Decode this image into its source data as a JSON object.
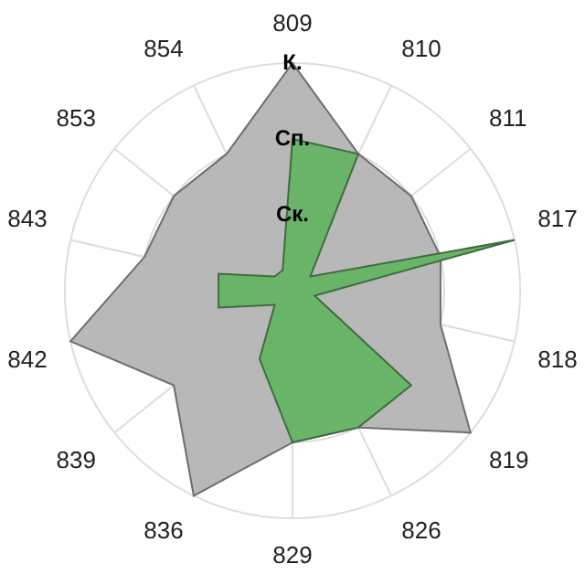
{
  "chart_data": {
    "type": "radar",
    "categories": [
      "809",
      "810",
      "811",
      "817",
      "818",
      "819",
      "826",
      "829",
      "836",
      "839",
      "842",
      "843",
      "853",
      "854"
    ],
    "ylim": [
      0,
      3
    ],
    "yticks": [
      {
        "value": 1,
        "label": "Ск."
      },
      {
        "value": 2,
        "label": "Сп."
      },
      {
        "value": 3,
        "label": "К."
      }
    ],
    "grid": true,
    "legend": false,
    "marker": "none",
    "series": [
      {
        "color": "#b8b8b8",
        "values": [
          3,
          2,
          2,
          2,
          2,
          3,
          2,
          2,
          3,
          2,
          3,
          2,
          2,
          2
        ]
      },
      {
        "color": "#69b469",
        "values": [
          2,
          2,
          0.3,
          3,
          0.3,
          2,
          2,
          2,
          1,
          0.3,
          1,
          1,
          0.3,
          0.3
        ]
      }
    ]
  }
}
